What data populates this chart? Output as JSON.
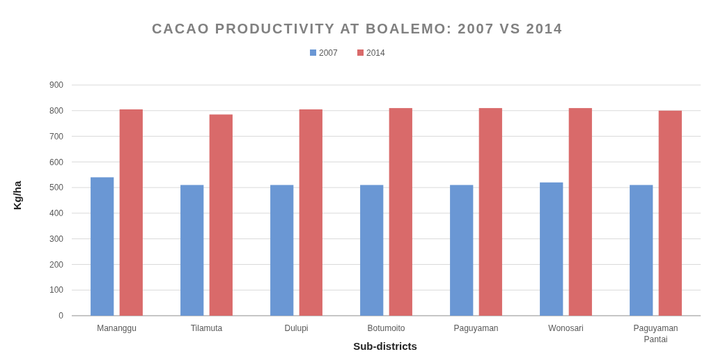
{
  "chart_data": {
    "type": "bar",
    "title": "CACAO PRODUCTIVITY AT BOALEMO: 2007 VS 2014",
    "xlabel": "Sub-districts",
    "ylabel": "Kg/ha",
    "categories": [
      "Mananggu",
      "Tilamuta",
      "Dulupi",
      "Botumoito",
      "Paguyaman",
      "Wonosari",
      "Paguyaman Pantai"
    ],
    "series": [
      {
        "name": "2007",
        "color": "#6a97d4",
        "values": [
          540,
          510,
          510,
          510,
          510,
          520,
          510
        ]
      },
      {
        "name": "2014",
        "color": "#d96a6a",
        "values": [
          805,
          785,
          805,
          810,
          810,
          810,
          800
        ]
      }
    ],
    "ylim": [
      0,
      900
    ],
    "yticks": [
      0,
      100,
      200,
      300,
      400,
      500,
      600,
      700,
      800,
      900
    ],
    "grid": "y",
    "legend": "top"
  }
}
